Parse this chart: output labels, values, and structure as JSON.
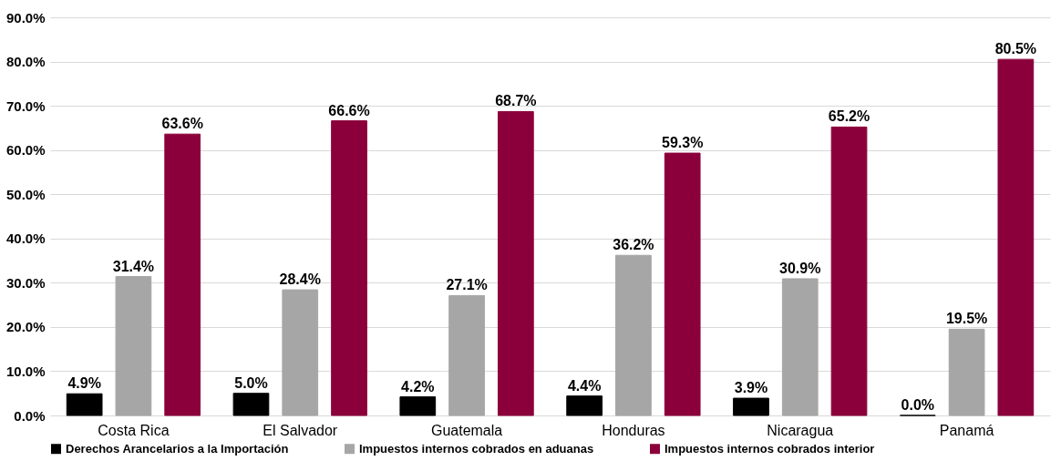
{
  "chart_data": {
    "type": "bar",
    "categories": [
      "Costa Rica",
      "El Salvador",
      "Guatemala",
      "Honduras",
      "Nicaragua",
      "Panamá"
    ],
    "series": [
      {
        "name": "Derechos Arancelarios a la Importación",
        "color": "#000000",
        "values": [
          4.9,
          5.0,
          4.2,
          4.4,
          3.9,
          0.0
        ],
        "value_labels": [
          "4.9%",
          "5.0%",
          "4.2%",
          "4.4%",
          "3.9%",
          "0.0%"
        ]
      },
      {
        "name": "Impuestos internos cobrados en aduanas",
        "color": "#a6a6a6",
        "values": [
          31.4,
          28.4,
          27.1,
          36.2,
          30.9,
          19.5
        ],
        "value_labels": [
          "31.4%",
          "28.4%",
          "27.1%",
          "36.2%",
          "30.9%",
          "19.5%"
        ]
      },
      {
        "name": "Impuestos internos cobrados interior",
        "color": "#8b003a",
        "values": [
          63.6,
          66.6,
          68.7,
          59.3,
          65.2,
          80.5
        ],
        "value_labels": [
          "63.6%",
          "66.6%",
          "68.7%",
          "59.3%",
          "65.2%",
          "80.5%"
        ]
      }
    ],
    "ylim": [
      0,
      90
    ],
    "yticks": [
      {
        "value": 0,
        "label": "0.0%"
      },
      {
        "value": 10,
        "label": "10.0%"
      },
      {
        "value": 20,
        "label": "20.0%"
      },
      {
        "value": 30,
        "label": "30.0%"
      },
      {
        "value": 40,
        "label": "40.0%"
      },
      {
        "value": 50,
        "label": "50.0%"
      },
      {
        "value": 60,
        "label": "60.0%"
      },
      {
        "value": 70,
        "label": "70.0%"
      },
      {
        "value": 80,
        "label": "80.0%"
      },
      {
        "value": 90,
        "label": "90.0%"
      }
    ],
    "grid": "y",
    "legend": "bottom"
  }
}
